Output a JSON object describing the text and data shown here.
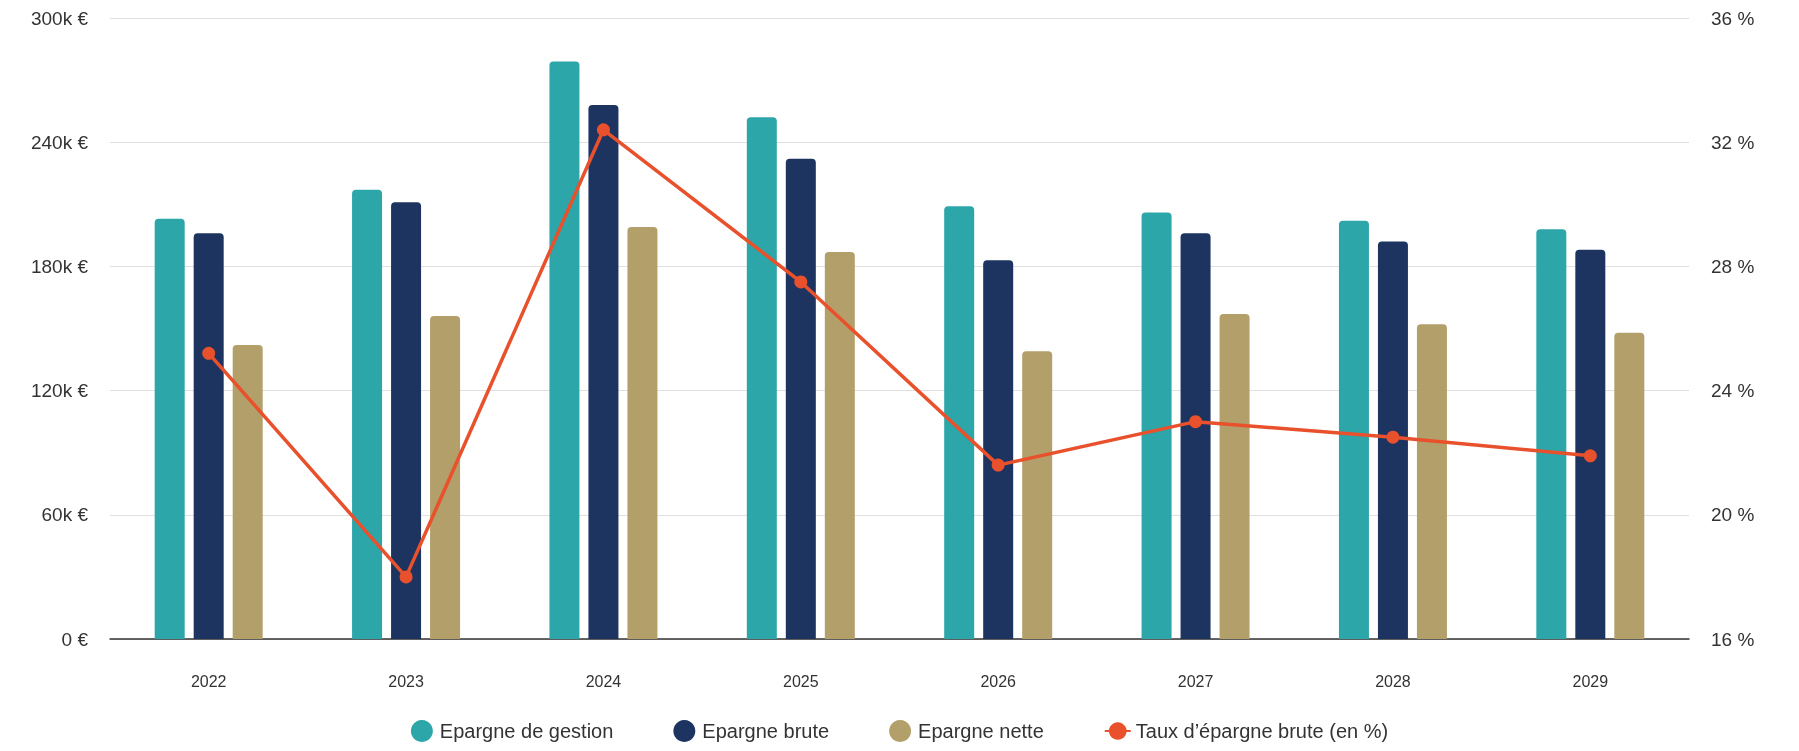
{
  "chart_data": {
    "type": "bar",
    "categories": [
      "2022",
      "2023",
      "2024",
      "2025",
      "2026",
      "2027",
      "2028",
      "2029"
    ],
    "series": [
      {
        "name": "Epargne de gestion",
        "color": "#2ca6a9",
        "values": [
          203000,
          217000,
          279000,
          252000,
          209000,
          206000,
          202000,
          198000
        ]
      },
      {
        "name": "Epargne brute",
        "color": "#1d3461",
        "values": [
          196000,
          211000,
          258000,
          232000,
          183000,
          196000,
          192000,
          188000
        ]
      },
      {
        "name": "Epargne nette",
        "color": "#b39f6a",
        "values": [
          142000,
          156000,
          199000,
          187000,
          139000,
          157000,
          152000,
          148000
        ]
      },
      {
        "name": "Taux d’épargne brute (en %)",
        "type": "line",
        "axis": "y2",
        "color": "#e8512c",
        "marker": "circle",
        "values": [
          25.2,
          18.0,
          32.4,
          27.5,
          21.6,
          23.0,
          22.5,
          21.9
        ]
      }
    ],
    "ylim": [
      0,
      300000
    ],
    "yticks": [
      {
        "value": 0,
        "label": "0 €"
      },
      {
        "value": 60000,
        "label": "60k €"
      },
      {
        "value": 120000,
        "label": "120k €"
      },
      {
        "value": 180000,
        "label": "180k €"
      },
      {
        "value": 240000,
        "label": "240k €"
      },
      {
        "value": 300000,
        "label": "300k €"
      }
    ],
    "y2lim": [
      16,
      36
    ],
    "y2ticks": [
      {
        "value": 16,
        "label": "16 %"
      },
      {
        "value": 20,
        "label": "20 %"
      },
      {
        "value": 24,
        "label": "24 %"
      },
      {
        "value": 28,
        "label": "28 %"
      },
      {
        "value": 32,
        "label": "32 %"
      },
      {
        "value": 36,
        "label": "36 %"
      }
    ],
    "grid": "y",
    "legend": "bottom"
  }
}
